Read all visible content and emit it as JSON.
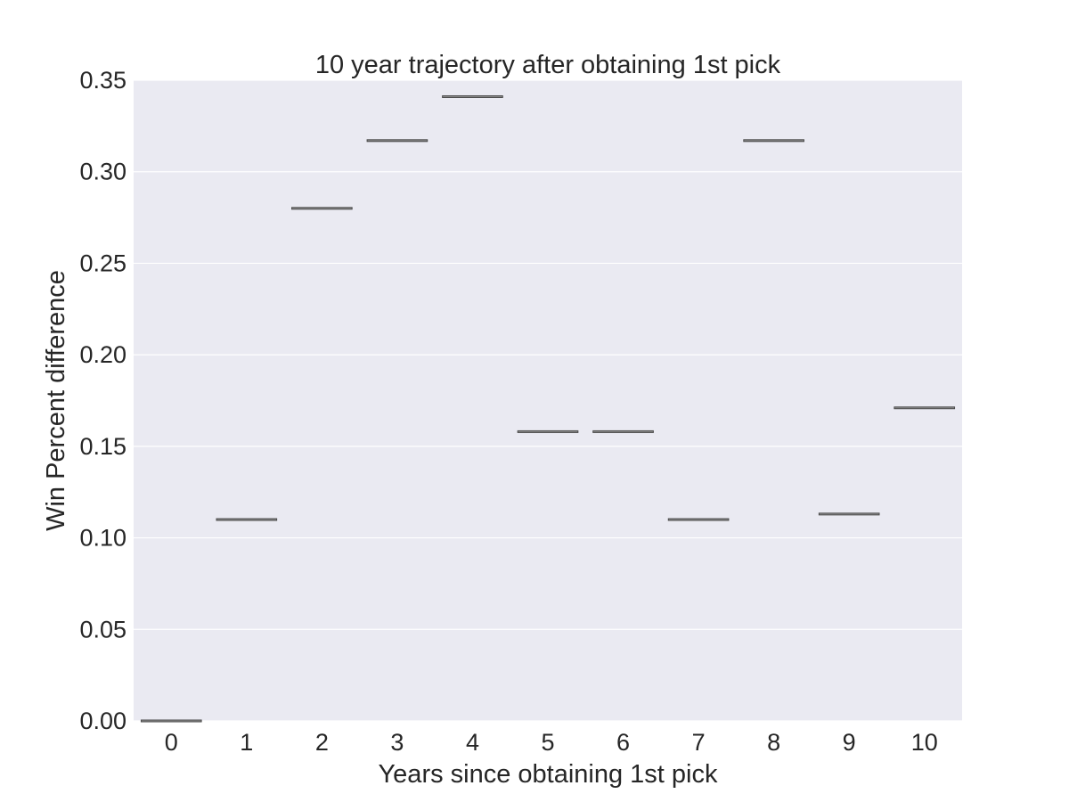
{
  "chart_data": {
    "type": "box",
    "title": "10 year trajectory after obtaining 1st pick",
    "xlabel": "Years since obtaining 1st pick",
    "ylabel": "Win Percent difference",
    "categories": [
      "0",
      "1",
      "2",
      "3",
      "4",
      "5",
      "6",
      "7",
      "8",
      "9",
      "10"
    ],
    "values": [
      0.0,
      0.11,
      0.28,
      0.317,
      0.341,
      0.158,
      0.158,
      0.11,
      0.317,
      0.113,
      0.171
    ],
    "ylim": [
      0.0,
      0.35
    ],
    "yticks": [
      0.0,
      0.05,
      0.1,
      0.15,
      0.2,
      0.25,
      0.3,
      0.35
    ],
    "ytick_labels": [
      "0.00",
      "0.05",
      "0.10",
      "0.15",
      "0.20",
      "0.25",
      "0.30",
      "0.35"
    ],
    "grid": true,
    "colors": {
      "plot_background": "#eaeaf2",
      "grid": "#ffffff",
      "box_line": "#4a4a4a",
      "text": "#262626"
    }
  }
}
